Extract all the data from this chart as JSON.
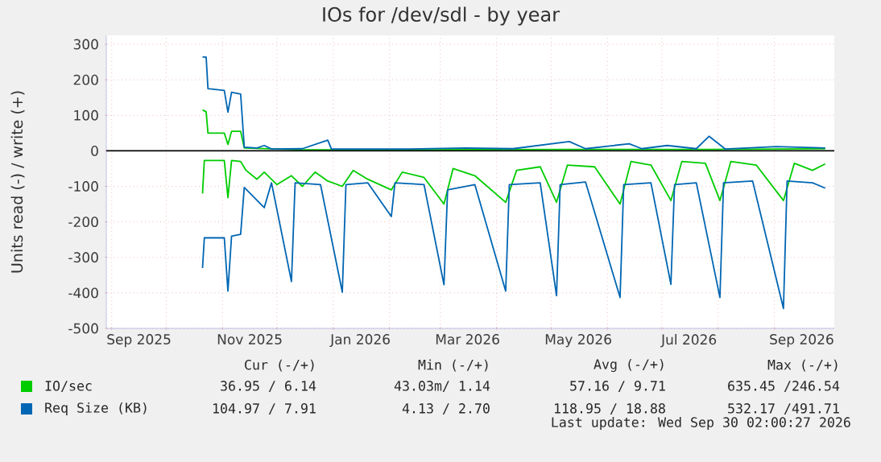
{
  "chart_data": {
    "type": "line",
    "title": "IOs for /dev/sdl - by year",
    "ylabel": "Units read (-) / write (+)",
    "xlim": [
      "2025-08-29",
      "2026-10-04"
    ],
    "xticks": [
      {
        "value": "2025-09-01",
        "label": null
      },
      {
        "value": "2025-09-16",
        "label": "Sep 2025"
      },
      {
        "value": "2025-10-01",
        "label": null
      },
      {
        "value": "2025-11-01",
        "label": null
      },
      {
        "value": "2025-11-16",
        "label": "Nov 2025"
      },
      {
        "value": "2025-12-01",
        "label": null
      },
      {
        "value": "2026-01-01",
        "label": null
      },
      {
        "value": "2026-01-16",
        "label": "Jan 2026"
      },
      {
        "value": "2026-02-01",
        "label": null
      },
      {
        "value": "2026-03-01",
        "label": null
      },
      {
        "value": "2026-03-16",
        "label": "Mar 2026"
      },
      {
        "value": "2026-04-01",
        "label": null
      },
      {
        "value": "2026-05-01",
        "label": null
      },
      {
        "value": "2026-05-16",
        "label": "May 2026"
      },
      {
        "value": "2026-06-01",
        "label": null
      },
      {
        "value": "2026-07-01",
        "label": null
      },
      {
        "value": "2026-07-16",
        "label": "Jul 2026"
      },
      {
        "value": "2026-08-01",
        "label": null
      },
      {
        "value": "2026-09-01",
        "label": null
      },
      {
        "value": "2026-09-16",
        "label": "Sep 2026"
      }
    ],
    "ylim": [
      -500,
      325
    ],
    "yticks": [
      -500,
      -400,
      -300,
      -200,
      -100,
      0,
      100,
      200,
      300
    ],
    "grid": true,
    "legend": "bottom",
    "series": [
      {
        "name": "IO/sec",
        "color": "#00cc00",
        "x": [
          "2025-10-21",
          "2025-10-23",
          "2025-10-24",
          "2025-11-02",
          "2025-11-04",
          "2025-11-06",
          "2025-11-11",
          "2025-11-13",
          "2025-12-15",
          "2026-02-10",
          "2026-05-11",
          "2026-07-27",
          "2026-09-29"
        ],
        "values": [
          115,
          110,
          50,
          50,
          18,
          55,
          55,
          8,
          3,
          3,
          4,
          4,
          6
        ]
      },
      {
        "color": "#00cc00",
        "x": [
          "2025-10-21",
          "2025-10-22",
          "2025-11-02",
          "2025-11-04",
          "2025-11-06",
          "2025-11-11",
          "2025-11-14",
          "2025-11-20",
          "2025-11-24",
          "2025-12-01",
          "2025-12-09",
          "2025-12-15",
          "2025-12-22",
          "2025-12-29",
          "2026-01-06",
          "2026-01-12",
          "2026-01-20",
          "2026-02-02",
          "2026-02-08",
          "2026-02-20",
          "2026-03-03",
          "2026-03-08",
          "2026-03-20",
          "2026-04-06",
          "2026-04-12",
          "2026-04-25",
          "2026-05-04",
          "2026-05-10",
          "2026-05-25",
          "2026-06-08",
          "2026-06-14",
          "2026-06-25",
          "2026-07-06",
          "2026-07-12",
          "2026-07-25",
          "2026-08-02",
          "2026-08-08",
          "2026-08-22",
          "2026-09-06",
          "2026-09-12",
          "2026-09-22",
          "2026-09-29"
        ],
        "values": [
          -120,
          -27,
          -27,
          -132,
          -27,
          -30,
          -55,
          -80,
          -60,
          -95,
          -70,
          -100,
          -60,
          -85,
          -100,
          -55,
          -80,
          -110,
          -60,
          -75,
          -150,
          -50,
          -70,
          -145,
          -55,
          -45,
          -145,
          -40,
          -45,
          -150,
          -30,
          -40,
          -140,
          -30,
          -35,
          -140,
          -30,
          -40,
          -140,
          -35,
          -55,
          -37
        ]
      },
      {
        "name": "Req Size (KB)",
        "color": "#0066b3",
        "x": [
          "2025-10-21",
          "2025-10-23",
          "2025-10-24",
          "2025-11-02",
          "2025-11-04",
          "2025-11-06",
          "2025-11-11",
          "2025-11-13",
          "2025-11-20",
          "2025-11-24",
          "2025-11-28",
          "2025-12-15",
          "2025-12-29",
          "2025-12-31",
          "2026-02-10",
          "2026-03-15",
          "2026-04-10",
          "2026-05-11",
          "2026-05-20",
          "2026-06-13",
          "2026-06-20",
          "2026-07-04",
          "2026-07-20",
          "2026-07-27",
          "2026-08-05",
          "2026-09-02",
          "2026-09-29"
        ],
        "values": [
          264,
          264,
          175,
          170,
          109,
          165,
          160,
          10,
          8,
          15,
          5,
          6,
          30,
          5,
          5,
          8,
          6,
          26,
          6,
          20,
          6,
          15,
          6,
          41,
          5,
          12,
          8
        ]
      },
      {
        "color": "#0066b3",
        "x": [
          "2025-10-21",
          "2025-10-22",
          "2025-11-02",
          "2025-11-04",
          "2025-11-06",
          "2025-11-11",
          "2025-11-13",
          "2025-11-24",
          "2025-11-28",
          "2025-12-09",
          "2025-12-11",
          "2025-12-25",
          "2026-01-06",
          "2026-01-08",
          "2026-01-20",
          "2026-02-02",
          "2026-02-04",
          "2026-02-20",
          "2026-03-03",
          "2026-03-05",
          "2026-03-20",
          "2026-04-06",
          "2026-04-08",
          "2026-04-25",
          "2026-05-04",
          "2026-05-06",
          "2026-05-20",
          "2026-06-08",
          "2026-06-10",
          "2026-06-25",
          "2026-07-06",
          "2026-07-08",
          "2026-07-20",
          "2026-08-02",
          "2026-08-04",
          "2026-08-20",
          "2026-09-06",
          "2026-09-08",
          "2026-09-22",
          "2026-09-29"
        ],
        "values": [
          -330,
          -245,
          -245,
          -395,
          -240,
          -235,
          -103,
          -160,
          -90,
          -368,
          -90,
          -95,
          -398,
          -95,
          -90,
          -185,
          -90,
          -95,
          -377,
          -110,
          -95,
          -395,
          -95,
          -90,
          -408,
          -95,
          -88,
          -413,
          -95,
          -90,
          -376,
          -95,
          -90,
          -413,
          -90,
          -85,
          -444,
          -85,
          -90,
          -105
        ]
      }
    ],
    "ref_lines": [
      {
        "axis": "y",
        "value": 0,
        "color": "#000000"
      }
    ],
    "annotations": [
      "Cur (-/+)",
      "Min (-/+)",
      "Avg (-/+)",
      "Max (-/+)",
      "36.95 /   6.14",
      "43.03m/  1.14",
      "57.16 /  9.71",
      "635.45 /246.54",
      "104.97 /   7.91",
      "4.13 /   2.70",
      "118.95 / 18.88",
      "532.17 /491.71",
      "Last update: Wed Sep 30 02:00:27 2026"
    ]
  }
}
